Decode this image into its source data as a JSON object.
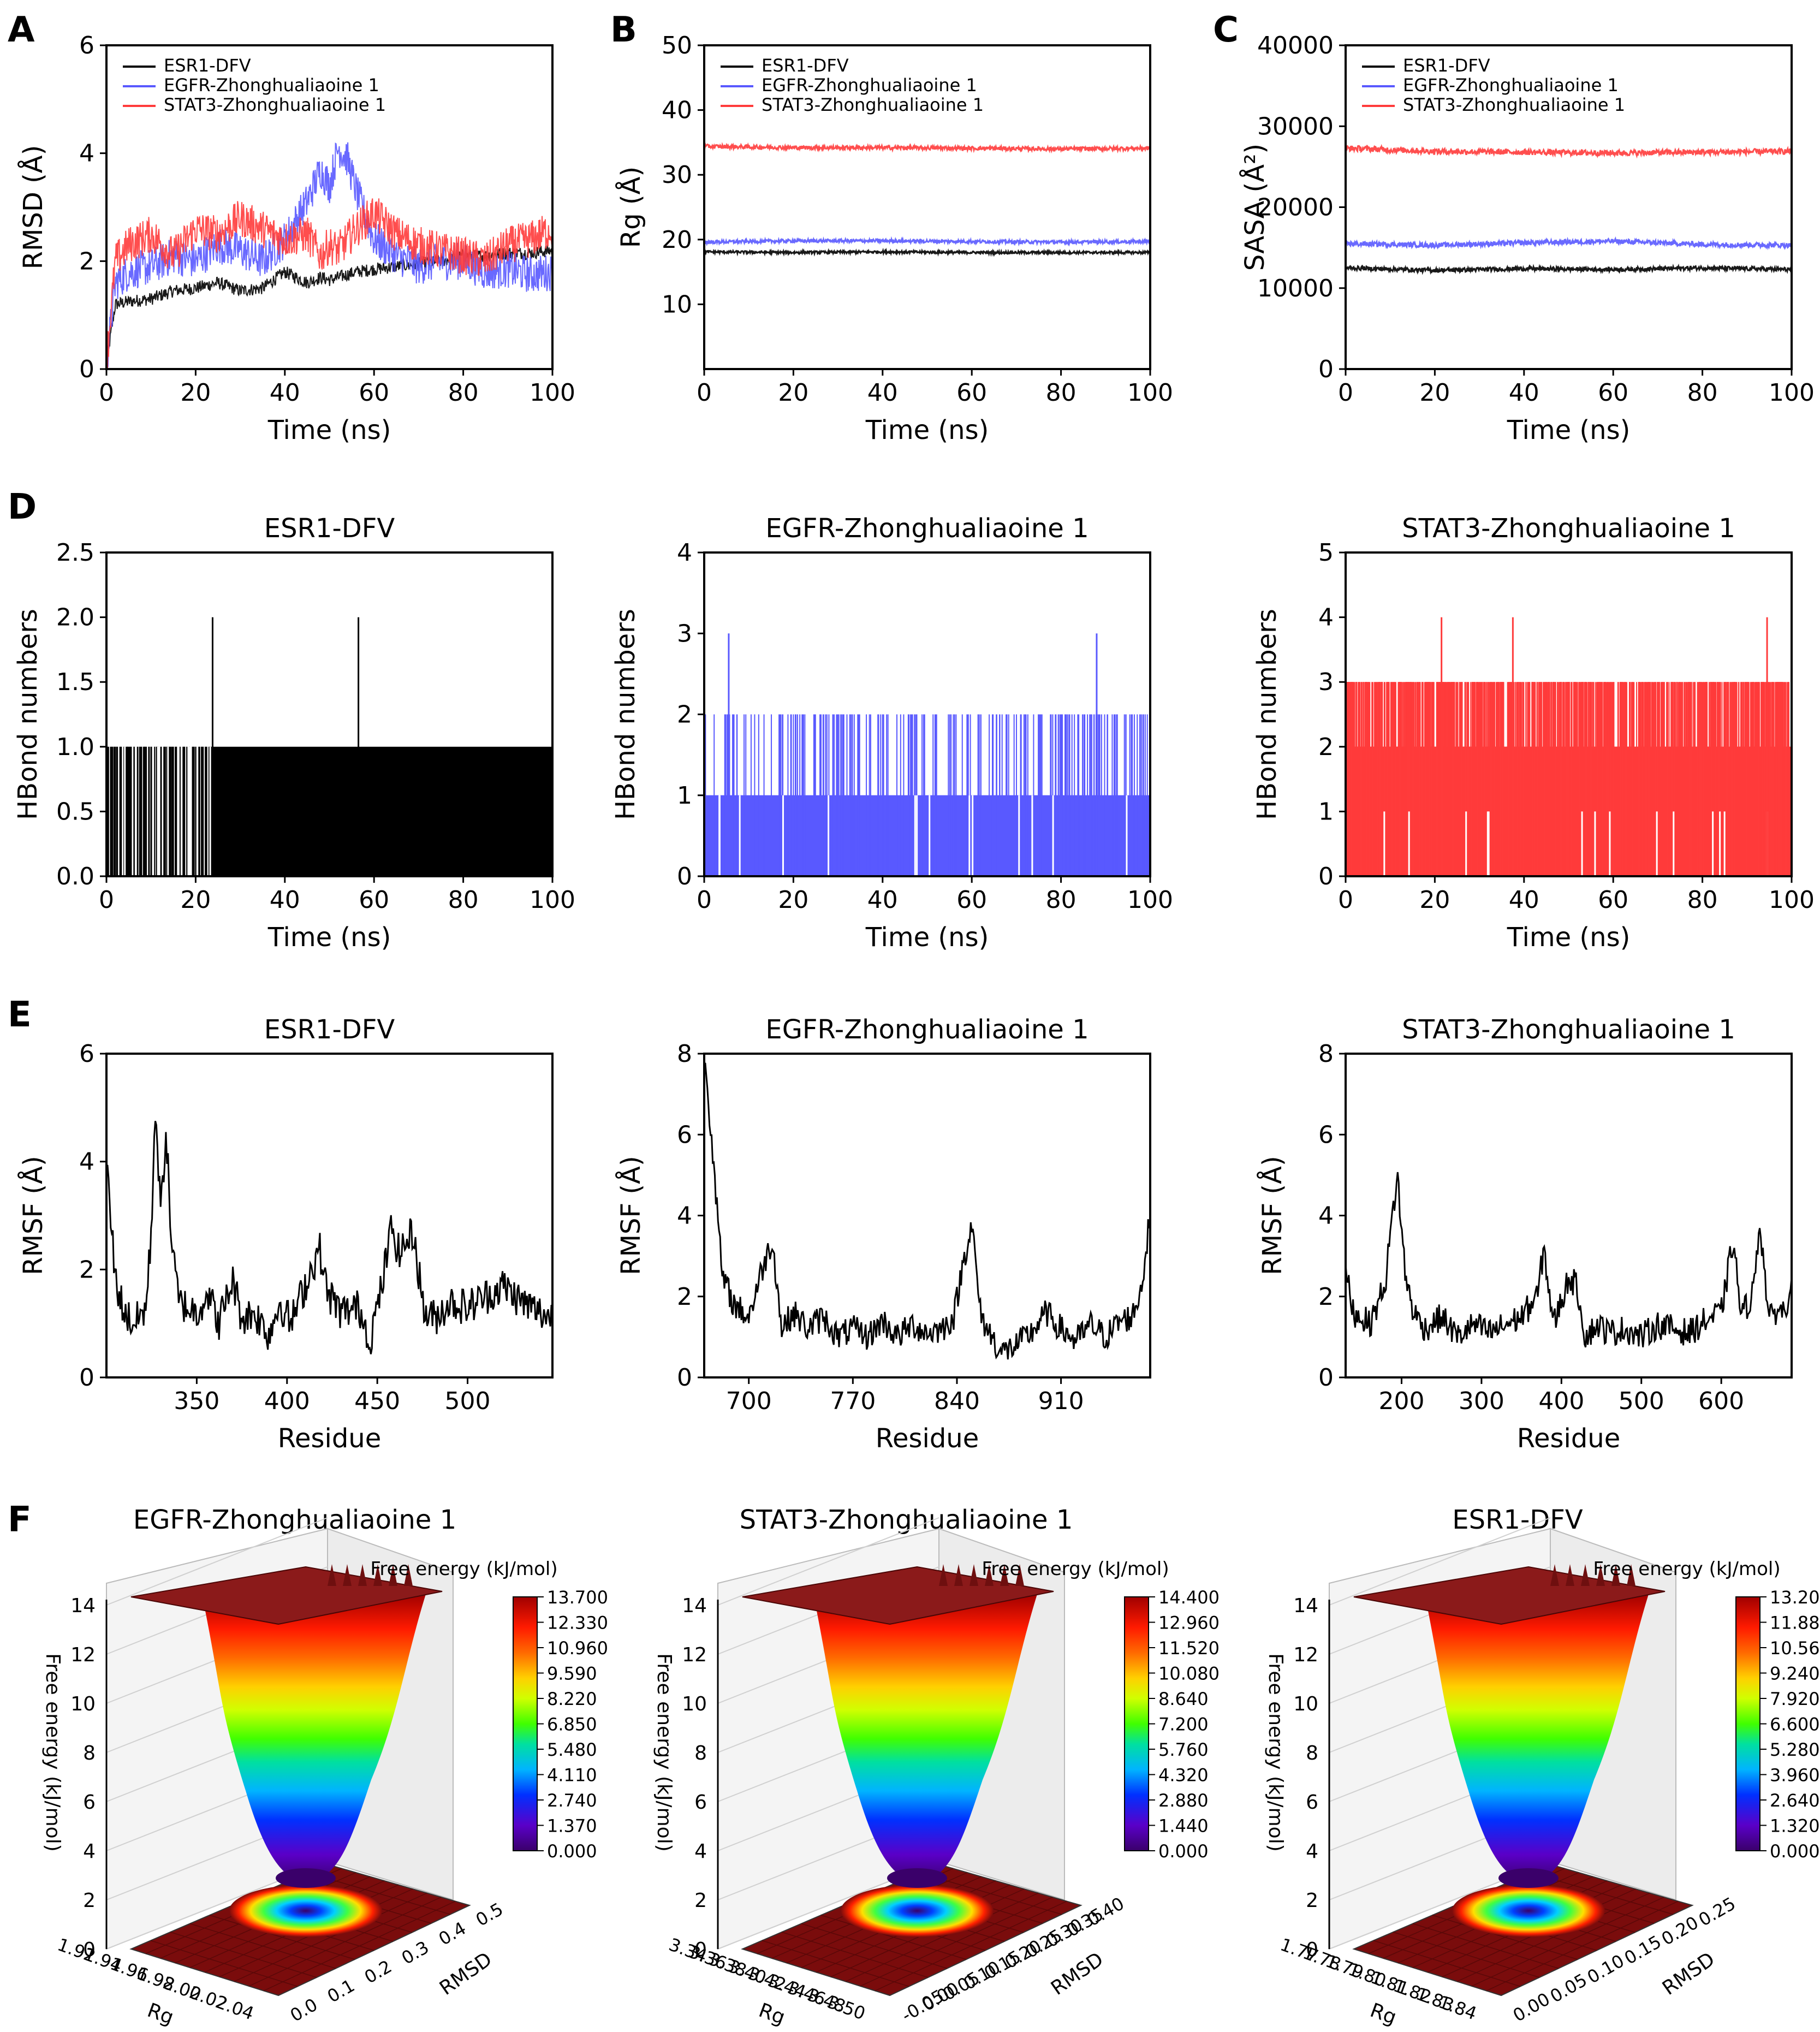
{
  "figure": {
    "panel_letters": [
      "A",
      "B",
      "C",
      "D",
      "E",
      "F"
    ]
  },
  "colors": {
    "ESR1-DFV": "#000000",
    "EGFR-Zhonghualiaoine 1": "#5959ff",
    "STAT3-Zhonghualiaoine 1": "#ff3b3b",
    "axis": "#000000",
    "fel_floor": "#7a0c0c",
    "fel_plateau": "#8b1a1a"
  },
  "chart_data": [
    {
      "id": "A",
      "type": "line",
      "xlabel": "Time (ns)",
      "ylabel": "RMSD (Å)",
      "xlim": [
        0,
        100
      ],
      "ylim": [
        0,
        6
      ],
      "xticks": [
        0,
        20,
        40,
        60,
        80,
        100
      ],
      "yticks": [
        0,
        2,
        4,
        6
      ],
      "legend": "top-left",
      "x": [
        0,
        2,
        5,
        10,
        15,
        20,
        25,
        30,
        35,
        40,
        45,
        48,
        50,
        52,
        54,
        56,
        60,
        65,
        70,
        75,
        80,
        85,
        90,
        95,
        100
      ],
      "series": [
        {
          "name": "ESR1-DFV",
          "values": [
            0.1,
            1.2,
            1.25,
            1.3,
            1.45,
            1.5,
            1.6,
            1.45,
            1.5,
            1.8,
            1.6,
            1.7,
            1.65,
            1.7,
            1.75,
            1.8,
            1.85,
            1.9,
            1.95,
            2.0,
            2.1,
            2.1,
            2.15,
            2.15,
            2.2
          ]
        },
        {
          "name": "EGFR-Zhonghualiaoine 1",
          "values": [
            0.1,
            1.6,
            1.8,
            1.9,
            2.1,
            2.0,
            2.3,
            2.2,
            2.0,
            2.4,
            3.1,
            3.7,
            3.4,
            4.1,
            3.9,
            3.3,
            2.4,
            2.1,
            1.9,
            2.0,
            2.0,
            1.8,
            1.85,
            1.75,
            1.8
          ]
        },
        {
          "name": "STAT3-Zhonghualiaoine 1",
          "values": [
            0.1,
            2.0,
            2.3,
            2.5,
            2.1,
            2.6,
            2.5,
            2.8,
            2.6,
            2.4,
            2.5,
            2.1,
            2.3,
            2.2,
            2.4,
            2.6,
            2.9,
            2.5,
            2.3,
            2.2,
            2.1,
            2.0,
            2.3,
            2.4,
            2.6
          ]
        }
      ]
    },
    {
      "id": "B",
      "type": "line",
      "xlabel": "Time (ns)",
      "ylabel": "Rg (Å)",
      "xlim": [
        0,
        100
      ],
      "ylim": [
        0,
        50
      ],
      "xticks": [
        0,
        20,
        40,
        60,
        80,
        100
      ],
      "yticks": [
        10,
        20,
        30,
        40,
        50
      ],
      "legend": "top-left",
      "x": [
        0,
        20,
        40,
        60,
        80,
        100
      ],
      "series": [
        {
          "name": "ESR1-DFV",
          "values": [
            18.1,
            18.0,
            18.1,
            18.0,
            18.0,
            18.0
          ]
        },
        {
          "name": "EGFR-Zhonghualiaoine 1",
          "values": [
            19.6,
            19.8,
            19.8,
            19.7,
            19.6,
            19.7
          ]
        },
        {
          "name": "STAT3-Zhonghualiaoine 1",
          "values": [
            34.4,
            34.2,
            34.2,
            34.1,
            34.0,
            34.1
          ]
        }
      ]
    },
    {
      "id": "C",
      "type": "line",
      "xlabel": "Time (ns)",
      "ylabel": "SASA (Å²)",
      "xlim": [
        0,
        100
      ],
      "ylim": [
        0,
        40000
      ],
      "xticks": [
        0,
        20,
        40,
        60,
        80,
        100
      ],
      "yticks": [
        0,
        10000,
        20000,
        30000,
        40000
      ],
      "legend": "top-left",
      "x": [
        0,
        20,
        40,
        60,
        80,
        100
      ],
      "series": [
        {
          "name": "ESR1-DFV",
          "values": [
            12500,
            12200,
            12400,
            12300,
            12500,
            12300
          ]
        },
        {
          "name": "EGFR-Zhonghualiaoine 1",
          "values": [
            15500,
            15300,
            15600,
            15800,
            15400,
            15300
          ]
        },
        {
          "name": "STAT3-Zhonghualiaoine 1",
          "values": [
            27300,
            26900,
            26800,
            26700,
            26800,
            26900
          ]
        }
      ]
    },
    {
      "id": "D1",
      "type": "bar",
      "title": "ESR1-DFV",
      "series_name": "ESR1-DFV",
      "xlabel": "Time (ns)",
      "ylabel": "HBond numbers",
      "xlim": [
        0,
        100
      ],
      "ylim": [
        0,
        2.5
      ],
      "xticks": [
        0,
        20,
        40,
        60,
        80,
        100
      ],
      "yticks": [
        0.0,
        0.5,
        1.0,
        1.5,
        2.0,
        2.5
      ],
      "typical_level": 1,
      "coverage_from": 24,
      "spikes": [
        {
          "x": 23.8,
          "value": 2
        },
        {
          "x": 56.5,
          "value": 2
        }
      ]
    },
    {
      "id": "D2",
      "type": "bar",
      "title": "EGFR-Zhonghualiaoine 1",
      "series_name": "EGFR-Zhonghualiaoine 1",
      "xlabel": "Time (ns)",
      "ylabel": "HBond numbers",
      "xlim": [
        0,
        100
      ],
      "ylim": [
        0,
        4
      ],
      "xticks": [
        0,
        20,
        40,
        60,
        80,
        100
      ],
      "yticks": [
        0,
        1,
        2,
        3,
        4
      ],
      "typical_level": 1,
      "frequent_level": 2,
      "spikes": [
        {
          "x": 5.5,
          "value": 3
        },
        {
          "x": 88.0,
          "value": 3
        }
      ]
    },
    {
      "id": "D3",
      "type": "bar",
      "title": "STAT3-Zhonghualiaoine 1",
      "series_name": "STAT3-Zhonghualiaoine 1",
      "xlabel": "Time (ns)",
      "ylabel": "HBond numbers",
      "xlim": [
        0,
        100
      ],
      "ylim": [
        0,
        5
      ],
      "xticks": [
        0,
        20,
        40,
        60,
        80,
        100
      ],
      "yticks": [
        0,
        1,
        2,
        3,
        4,
        5
      ],
      "typical_level": 2,
      "frequent_level": 3,
      "spikes": [
        {
          "x": 21.5,
          "value": 4
        },
        {
          "x": 37.5,
          "value": 4
        },
        {
          "x": 94.5,
          "value": 4
        }
      ]
    },
    {
      "id": "E1",
      "type": "line",
      "title": "ESR1-DFV",
      "series_name": "ESR1-DFV",
      "xlabel": "Residue",
      "ylabel": "RMSF (Å)",
      "xlim": [
        300,
        547
      ],
      "ylim": [
        0,
        6
      ],
      "xticks": [
        350,
        400,
        450,
        500
      ],
      "yticks": [
        0,
        2,
        4,
        6
      ],
      "x": [
        300,
        305,
        310,
        315,
        318,
        322,
        325,
        327,
        330,
        333,
        336,
        340,
        350,
        356,
        362,
        370,
        375,
        382,
        390,
        396,
        402,
        410,
        418,
        422,
        430,
        440,
        446,
        452,
        458,
        462,
        470,
        476,
        482,
        490,
        500,
        510,
        520,
        530,
        540,
        547
      ],
      "values": [
        4.0,
        1.8,
        1.2,
        1.0,
        1.1,
        1.3,
        2.8,
        5.1,
        3.0,
        4.6,
        2.5,
        1.4,
        1.2,
        1.6,
        1.0,
        1.8,
        1.1,
        1.2,
        0.8,
        1.4,
        1.0,
        1.7,
        2.4,
        1.6,
        1.2,
        1.3,
        0.7,
        1.6,
        2.8,
        2.3,
        2.7,
        1.2,
        1.1,
        1.4,
        1.3,
        1.5,
        1.7,
        1.4,
        1.2,
        1.1
      ]
    },
    {
      "id": "E2",
      "type": "line",
      "title": "EGFR-Zhonghualiaoine 1",
      "series_name": "EGFR-Zhonghualiaoine 1",
      "xlabel": "Residue",
      "ylabel": "RMSF (Å)",
      "xlim": [
        670,
        970
      ],
      "ylim": [
        0,
        8
      ],
      "xticks": [
        700,
        770,
        840,
        910
      ],
      "yticks": [
        0,
        2,
        4,
        6,
        8
      ],
      "x": [
        670,
        675,
        682,
        690,
        700,
        710,
        716,
        722,
        730,
        740,
        750,
        760,
        770,
        780,
        790,
        800,
        810,
        820,
        830,
        838,
        845,
        850,
        856,
        862,
        870,
        880,
        890,
        900,
        910,
        920,
        930,
        940,
        950,
        958,
        964,
        970
      ],
      "values": [
        8.0,
        6.0,
        2.5,
        1.8,
        1.5,
        2.8,
        3.4,
        1.2,
        1.6,
        1.2,
        1.5,
        1.0,
        1.2,
        1.0,
        1.4,
        1.0,
        1.3,
        1.1,
        1.2,
        1.5,
        3.0,
        3.8,
        1.5,
        1.1,
        0.6,
        0.8,
        1.1,
        1.6,
        1.2,
        0.9,
        1.3,
        1.0,
        1.4,
        1.5,
        2.2,
        4.0
      ]
    },
    {
      "id": "E3",
      "type": "line",
      "title": "STAT3-Zhonghualiaoine 1",
      "series_name": "STAT3-Zhonghualiaoine 1",
      "xlabel": "Residue",
      "ylabel": "RMSF (Å)",
      "xlim": [
        130,
        688
      ],
      "ylim": [
        0,
        8
      ],
      "xticks": [
        200,
        300,
        400,
        500,
        600
      ],
      "yticks": [
        0,
        2,
        4,
        6,
        8
      ],
      "x": [
        130,
        140,
        150,
        160,
        170,
        180,
        188,
        195,
        200,
        205,
        215,
        230,
        250,
        270,
        290,
        310,
        330,
        350,
        370,
        378,
        390,
        410,
        420,
        430,
        445,
        460,
        480,
        500,
        520,
        540,
        560,
        580,
        600,
        615,
        625,
        640,
        648,
        660,
        670,
        680,
        688
      ],
      "values": [
        2.6,
        1.6,
        1.5,
        1.3,
        1.8,
        2.4,
        3.9,
        5.0,
        3.6,
        2.5,
        1.6,
        1.2,
        1.5,
        1.0,
        1.3,
        1.1,
        1.3,
        1.5,
        2.0,
        3.2,
        1.3,
        2.5,
        2.2,
        1.0,
        1.3,
        1.1,
        1.2,
        1.0,
        1.3,
        1.2,
        1.1,
        1.4,
        1.6,
        3.4,
        1.5,
        2.1,
        3.9,
        1.4,
        1.7,
        1.6,
        2.6
      ]
    },
    {
      "id": "F1",
      "type": "heatmap",
      "title": "EGFR-Zhonghualiaoine 1",
      "xlabel": "Rg",
      "ylabel": "RMSD",
      "zlabel": "Free energy (kJ/mol)",
      "rg_ticks": [
        "1.92",
        "1.94",
        "1.96",
        "1.98",
        "2.00",
        "2.02",
        "2.04"
      ],
      "rmsd_ticks": [
        "0.0",
        "0.1",
        "0.2",
        "0.3",
        "0.4",
        "0.5"
      ],
      "z_ticks": [
        "0",
        "2",
        "4",
        "6",
        "8",
        "10",
        "12",
        "14"
      ],
      "colorbar_ticks": [
        "0.000",
        "1.370",
        "2.740",
        "4.110",
        "5.480",
        "6.850",
        "8.220",
        "9.590",
        "10.960",
        "12.330",
        "13.700"
      ],
      "zmax": 13.7
    },
    {
      "id": "F2",
      "type": "heatmap",
      "title": "STAT3-Zhonghualiaoine 1",
      "xlabel": "Rg",
      "ylabel": "RMSD",
      "zlabel": "Free energy (kJ/mol)",
      "rg_ticks": [
        "3.34",
        "3.36",
        "3.38",
        "3.40",
        "3.42",
        "3.44",
        "3.46",
        "3.48",
        "3.50"
      ],
      "rmsd_ticks": [
        "-0.05",
        "0.00",
        "0.05",
        "0.10",
        "0.15",
        "0.20",
        "0.25",
        "0.30",
        "0.35",
        "0.40"
      ],
      "z_ticks": [
        "0",
        "2",
        "4",
        "6",
        "8",
        "10",
        "12",
        "14"
      ],
      "colorbar_ticks": [
        "0.000",
        "1.440",
        "2.880",
        "4.320",
        "5.760",
        "7.200",
        "8.640",
        "10.080",
        "11.520",
        "12.960",
        "14.400"
      ],
      "zmax": 14.4
    },
    {
      "id": "F3",
      "type": "heatmap",
      "title": "ESR1-DFV",
      "xlabel": "Rg",
      "ylabel": "RMSD",
      "zlabel": "Free energy (kJ/mol)",
      "rg_ticks": [
        "1.77",
        "1.78",
        "1.79",
        "1.80",
        "1.81",
        "1.82",
        "1.83",
        "1.84"
      ],
      "rmsd_ticks": [
        "0.00",
        "0.05",
        "0.10",
        "0.15",
        "0.20",
        "0.25"
      ],
      "z_ticks": [
        "0",
        "2",
        "4",
        "6",
        "8",
        "10",
        "12",
        "14"
      ],
      "colorbar_ticks": [
        "0.000",
        "1.320",
        "2.640",
        "3.960",
        "5.280",
        "6.600",
        "7.920",
        "9.240",
        "10.560",
        "11.880",
        "13.200"
      ],
      "zmax": 13.2
    }
  ]
}
